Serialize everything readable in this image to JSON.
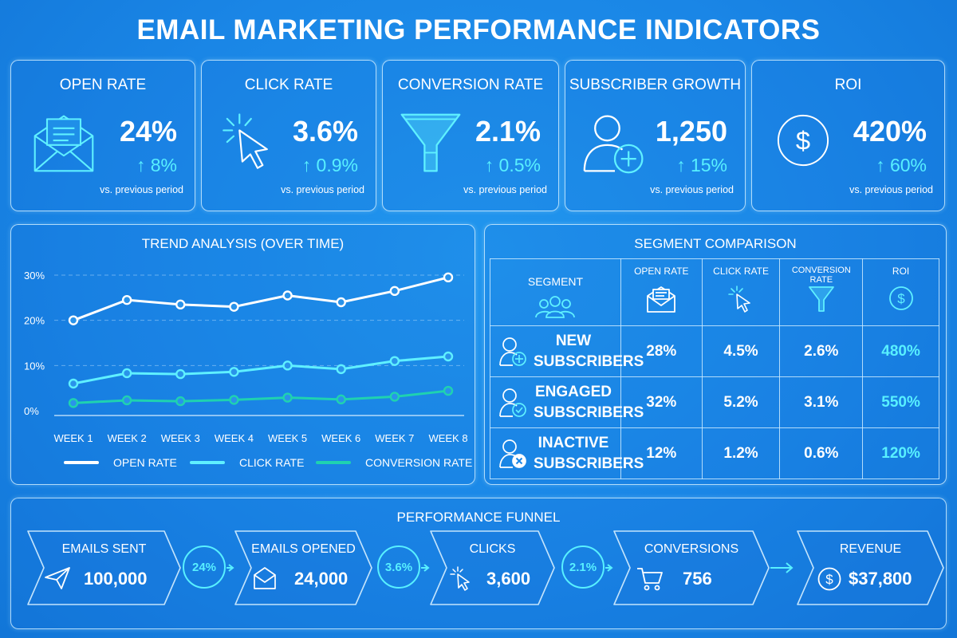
{
  "title": "EMAIL MARKETING PERFORMANCE INDICATORS",
  "kpis": [
    {
      "title": "OPEN RATE",
      "value": "24%",
      "change": "↑ 8%",
      "note": "vs. previous period",
      "icon": "envelope-icon"
    },
    {
      "title": "CLICK RATE",
      "value": "3.6%",
      "change": "↑ 0.9%",
      "note": "vs. previous period",
      "icon": "cursor-click-icon"
    },
    {
      "title": "CONVERSION RATE",
      "value": "2.1%",
      "change": "↑ 0.5%",
      "note": "vs. previous period",
      "icon": "funnel-icon"
    },
    {
      "title": "SUBSCRIBER GROWTH",
      "value": "1,250",
      "change": "↑ 15%",
      "note": "vs. previous period",
      "icon": "user-add-icon"
    },
    {
      "title": "ROI",
      "value": "420%",
      "change": "↑ 60%",
      "note": "vs. previous period",
      "icon": "dollar-circle-icon"
    }
  ],
  "trend": {
    "title": "TREND ANALYSIS (OVER TIME)",
    "legend": [
      "OPEN RATE",
      "CLICK RATE",
      "CONVERSION RATE"
    ]
  },
  "chart_data": {
    "type": "line",
    "title": "TREND ANALYSIS (OVER TIME)",
    "categories": [
      "WEEK 1",
      "WEEK 2",
      "WEEK 3",
      "WEEK 4",
      "WEEK 5",
      "WEEK 6",
      "WEEK 7",
      "WEEK 8"
    ],
    "yticks": [
      "0%",
      "10%",
      "20%",
      "30%"
    ],
    "ylim": [
      0,
      30
    ],
    "grid": true,
    "legend_position": "bottom",
    "series": [
      {
        "name": "OPEN RATE",
        "color": "#ffffff",
        "values": [
          20,
          24.5,
          23.5,
          23,
          25.5,
          24,
          26.5,
          29.5
        ]
      },
      {
        "name": "CLICK RATE",
        "color": "#5ff0ff",
        "values": [
          6,
          8.3,
          8.1,
          8.6,
          10,
          9.2,
          11,
          12
        ]
      },
      {
        "name": "CONVERSION RATE",
        "color": "#1fd2b0",
        "values": [
          1.7,
          2.3,
          2.1,
          2.4,
          2.9,
          2.5,
          3.1,
          4.4
        ]
      }
    ]
  },
  "segments": {
    "title": "SEGMENT COMPARISON",
    "headers": [
      "SEGMENT",
      "OPEN RATE",
      "CLICK RATE",
      "CONVERSION RATE",
      "ROI"
    ],
    "rows": [
      {
        "name": "NEW SUBSCRIBERS",
        "icon": "user-plus-icon",
        "open": "28%",
        "click": "4.5%",
        "conversion": "2.6%",
        "roi": "480%"
      },
      {
        "name": "ENGAGED SUBSCRIBERS",
        "icon": "user-check-icon",
        "open": "32%",
        "click": "5.2%",
        "conversion": "3.1%",
        "roi": "550%"
      },
      {
        "name": "INACTIVE SUBSCRIBERS",
        "icon": "user-x-icon",
        "open": "12%",
        "click": "1.2%",
        "conversion": "0.6%",
        "roi": "120%"
      }
    ]
  },
  "funnel": {
    "title": "PERFORMANCE FUNNEL",
    "stages": [
      {
        "label": "EMAILS SENT",
        "value": "100,000",
        "icon": "paper-plane-icon"
      },
      {
        "label": "EMAILS OPENED",
        "value": "24,000",
        "icon": "envelope-open-icon"
      },
      {
        "label": "CLICKS",
        "value": "3,600",
        "icon": "cursor-click-icon"
      },
      {
        "label": "CONVERSIONS",
        "value": "756",
        "icon": "cart-icon"
      },
      {
        "label": "REVENUE",
        "value": "$37,800",
        "icon": "dollar-circle-icon"
      }
    ],
    "rates": [
      "24%",
      "3.6%",
      "2.1%"
    ]
  },
  "colors": {
    "accent": "#58f0ff",
    "teal": "#1fd2b0",
    "background": "#1a86e6"
  }
}
